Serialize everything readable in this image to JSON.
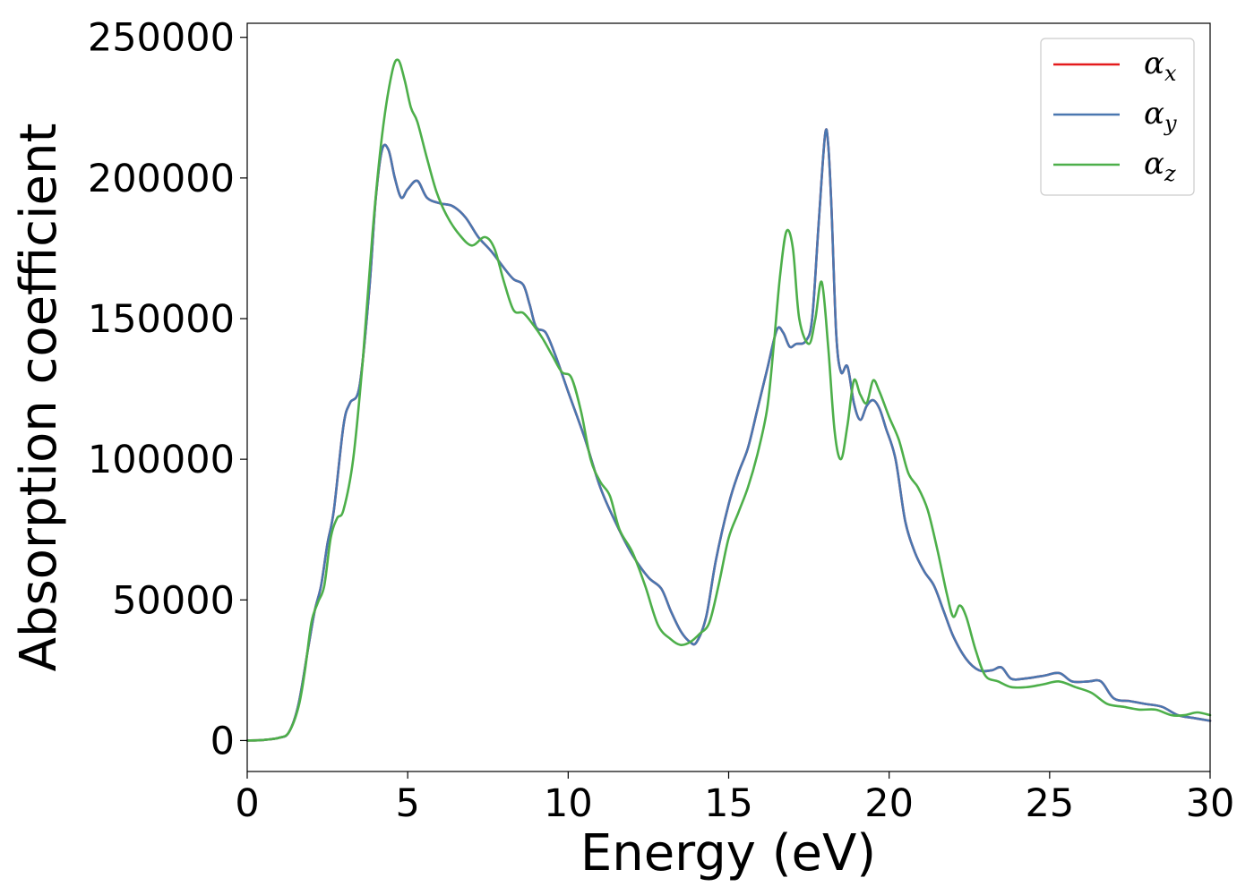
{
  "chart_data": {
    "type": "line",
    "title": "",
    "xlabel": "Energy (eV)",
    "ylabel": "Absorption coefficient",
    "xlim": [
      0,
      30
    ],
    "ylim": [
      -11000,
      255000
    ],
    "xticks": [
      0,
      5,
      10,
      15,
      20,
      25,
      30
    ],
    "xtick_labels": [
      "0",
      "5",
      "10",
      "15",
      "20",
      "25",
      "30"
    ],
    "yticks": [
      0,
      50000,
      100000,
      150000,
      200000,
      250000
    ],
    "ytick_labels": [
      "0",
      "50000",
      "100000",
      "150000",
      "200000",
      "250000"
    ],
    "grid": false,
    "legend": {
      "placement": "top-right",
      "entries": [
        {
          "symbol": "α",
          "subscript": "x",
          "color": "#e41a1c"
        },
        {
          "symbol": "α",
          "subscript": "y",
          "color": "#4a77b0"
        },
        {
          "symbol": "α",
          "subscript": "z",
          "color": "#4daf4a"
        }
      ]
    },
    "series": [
      {
        "name": "αx",
        "color": "#e41a1c",
        "x": [
          0,
          0.5,
          1.0,
          1.3,
          1.6,
          1.9,
          2.1,
          2.3,
          2.5,
          2.7,
          3.0,
          3.2,
          3.5,
          3.8,
          4.0,
          4.2,
          4.4,
          4.6,
          4.8,
          5.0,
          5.3,
          5.6,
          6.0,
          6.4,
          6.8,
          7.2,
          7.6,
          8.0,
          8.3,
          8.6,
          8.8,
          9.0,
          9.3,
          9.6,
          10.0,
          10.5,
          11.0,
          11.5,
          12.0,
          12.5,
          12.9,
          13.2,
          13.5,
          13.8,
          14.0,
          14.3,
          14.6,
          15.0,
          15.3,
          15.6,
          15.9,
          16.2,
          16.5,
          16.7,
          16.9,
          17.1,
          17.4,
          17.6,
          17.8,
          18.0,
          18.1,
          18.2,
          18.35,
          18.5,
          18.7,
          18.9,
          19.1,
          19.3,
          19.5,
          19.7,
          19.9,
          20.2,
          20.5,
          20.8,
          21.1,
          21.4,
          21.7,
          22.0,
          22.4,
          22.8,
          23.2,
          23.5,
          23.8,
          24.2,
          24.8,
          25.3,
          25.7,
          26.2,
          26.6,
          27.0,
          27.5,
          28.0,
          28.5,
          29.0,
          29.5,
          30.0
        ],
        "y": [
          0,
          200,
          1000,
          3000,
          13000,
          33000,
          46000,
          55000,
          70000,
          82000,
          112000,
          120000,
          126000,
          160000,
          192000,
          210000,
          210000,
          200000,
          193000,
          196000,
          199000,
          193000,
          191000,
          190000,
          186000,
          179000,
          174000,
          168000,
          164000,
          162000,
          155000,
          147000,
          145000,
          137000,
          124000,
          108000,
          90000,
          77000,
          66000,
          58000,
          54000,
          46000,
          39000,
          35000,
          35000,
          44000,
          64000,
          84000,
          95000,
          104000,
          118000,
          132000,
          146000,
          145000,
          140000,
          141000,
          142000,
          150000,
          183000,
          215000,
          212000,
          190000,
          145000,
          131000,
          133000,
          120000,
          114000,
          119000,
          121000,
          118000,
          111000,
          100000,
          78000,
          67000,
          60000,
          55000,
          46000,
          37000,
          29000,
          25000,
          25000,
          26000,
          22000,
          22000,
          23000,
          24000,
          21000,
          21000,
          21000,
          15000,
          14000,
          13000,
          12000,
          9000,
          8000,
          7000
        ]
      },
      {
        "name": "αy",
        "color": "#4a77b0",
        "x": [
          0,
          0.5,
          1.0,
          1.3,
          1.6,
          1.9,
          2.1,
          2.3,
          2.5,
          2.7,
          3.0,
          3.2,
          3.5,
          3.8,
          4.0,
          4.2,
          4.4,
          4.6,
          4.8,
          5.0,
          5.3,
          5.6,
          6.0,
          6.4,
          6.8,
          7.2,
          7.6,
          8.0,
          8.3,
          8.6,
          8.8,
          9.0,
          9.3,
          9.6,
          10.0,
          10.5,
          11.0,
          11.5,
          12.0,
          12.5,
          12.9,
          13.2,
          13.5,
          13.8,
          14.0,
          14.3,
          14.6,
          15.0,
          15.3,
          15.6,
          15.9,
          16.2,
          16.5,
          16.7,
          16.9,
          17.1,
          17.4,
          17.6,
          17.8,
          18.0,
          18.1,
          18.2,
          18.35,
          18.5,
          18.7,
          18.9,
          19.1,
          19.3,
          19.5,
          19.7,
          19.9,
          20.2,
          20.5,
          20.8,
          21.1,
          21.4,
          21.7,
          22.0,
          22.4,
          22.8,
          23.2,
          23.5,
          23.8,
          24.2,
          24.8,
          25.3,
          25.7,
          26.2,
          26.6,
          27.0,
          27.5,
          28.0,
          28.5,
          29.0,
          29.5,
          30.0
        ],
        "y": [
          0,
          200,
          1000,
          3000,
          13000,
          33000,
          46000,
          55000,
          70000,
          82000,
          112000,
          120000,
          126000,
          160000,
          192000,
          210000,
          210000,
          200000,
          193000,
          196000,
          199000,
          193000,
          191000,
          190000,
          186000,
          179000,
          174000,
          168000,
          164000,
          162000,
          155000,
          147000,
          145000,
          137000,
          124000,
          108000,
          90000,
          77000,
          66000,
          58000,
          54000,
          46000,
          39000,
          35000,
          35000,
          44000,
          64000,
          84000,
          95000,
          104000,
          118000,
          132000,
          146000,
          145000,
          140000,
          141000,
          142000,
          150000,
          183000,
          215000,
          212000,
          190000,
          145000,
          131000,
          133000,
          120000,
          114000,
          119000,
          121000,
          118000,
          111000,
          100000,
          78000,
          67000,
          60000,
          55000,
          46000,
          37000,
          29000,
          25000,
          25000,
          26000,
          22000,
          22000,
          23000,
          24000,
          21000,
          21000,
          21000,
          15000,
          14000,
          13000,
          12000,
          9000,
          8000,
          7000
        ]
      },
      {
        "name": "αz",
        "color": "#4daf4a",
        "x": [
          0,
          0.5,
          1.0,
          1.3,
          1.6,
          1.8,
          2.0,
          2.2,
          2.4,
          2.6,
          2.8,
          3.0,
          3.3,
          3.6,
          3.9,
          4.2,
          4.5,
          4.7,
          4.9,
          5.1,
          5.3,
          5.6,
          5.9,
          6.2,
          6.6,
          7.0,
          7.4,
          7.7,
          8.0,
          8.3,
          8.6,
          8.9,
          9.2,
          9.5,
          9.8,
          10.1,
          10.4,
          10.7,
          11.0,
          11.3,
          11.6,
          12.0,
          12.4,
          12.8,
          13.2,
          13.5,
          13.8,
          14.1,
          14.4,
          14.7,
          15.0,
          15.3,
          15.6,
          15.9,
          16.2,
          16.4,
          16.6,
          16.8,
          17.0,
          17.2,
          17.5,
          17.7,
          17.9,
          18.1,
          18.3,
          18.5,
          18.7,
          18.9,
          19.1,
          19.3,
          19.5,
          19.7,
          20.0,
          20.3,
          20.6,
          20.9,
          21.2,
          21.5,
          21.8,
          22.0,
          22.2,
          22.4,
          22.7,
          23.0,
          23.4,
          23.8,
          24.3,
          24.8,
          25.3,
          25.8,
          26.3,
          26.8,
          27.3,
          27.8,
          28.3,
          28.8,
          29.2,
          29.6,
          30.0
        ],
        "y": [
          0,
          200,
          1000,
          3000,
          12000,
          25000,
          42000,
          49000,
          55000,
          72000,
          79000,
          82000,
          100000,
          135000,
          180000,
          215000,
          237000,
          242000,
          235000,
          225000,
          220000,
          207000,
          195000,
          187000,
          180000,
          176000,
          179000,
          175000,
          163000,
          153000,
          152000,
          148000,
          143000,
          137000,
          131000,
          129000,
          117000,
          100000,
          92000,
          87000,
          75000,
          67000,
          55000,
          41000,
          36000,
          34000,
          35000,
          38000,
          42000,
          56000,
          72000,
          81000,
          90000,
          102000,
          118000,
          140000,
          165000,
          181000,
          175000,
          150000,
          141000,
          150000,
          163000,
          140000,
          110000,
          100000,
          112000,
          128000,
          123000,
          120000,
          128000,
          124000,
          115000,
          107000,
          95000,
          90000,
          82000,
          68000,
          52000,
          44000,
          48000,
          44000,
          32000,
          23000,
          21000,
          19000,
          19000,
          20000,
          21000,
          19000,
          17000,
          13000,
          12000,
          11000,
          11000,
          9000,
          9000,
          10000,
          9000
        ]
      }
    ]
  }
}
